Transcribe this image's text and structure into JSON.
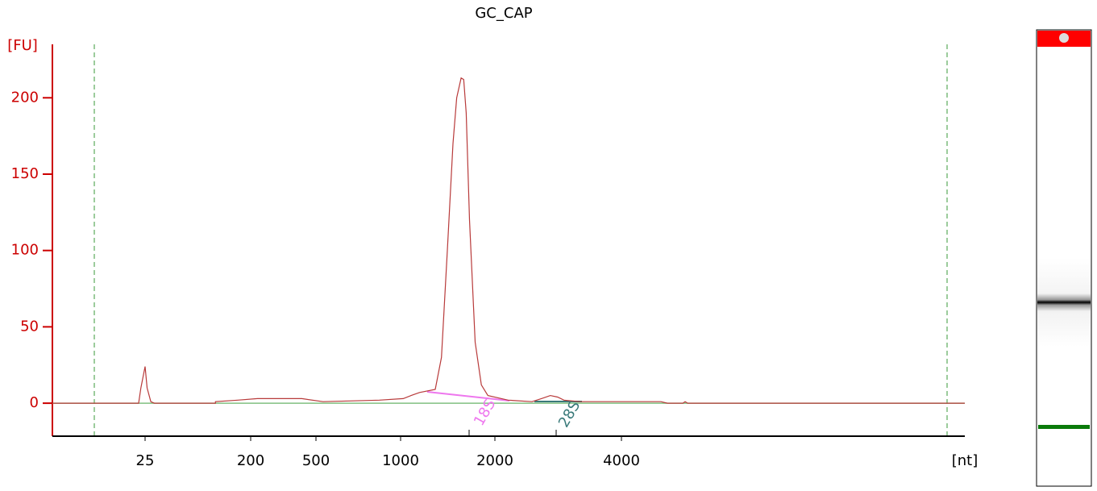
{
  "chart_data": {
    "type": "line",
    "title": "GC_CAP",
    "y_label": "[FU]",
    "x_label": "[nt]",
    "xlim": [
      4,
      26000
    ],
    "xticks": [
      25,
      200,
      500,
      1000,
      2000,
      4000
    ],
    "ylim": [
      -21.6,
      235
    ],
    "yticks": [
      0,
      50,
      100,
      150,
      200
    ],
    "color": "#b83a3a",
    "axis_color": "#cc0000",
    "x": [
      4,
      22,
      23,
      25,
      26,
      28,
      30,
      100,
      100,
      155,
      220,
      410,
      530,
      840,
      1020,
      1080,
      1150,
      1290,
      1350,
      1410,
      1470,
      1510,
      1560,
      1590,
      1620,
      1660,
      1730,
      1810,
      1900,
      2150,
      2450,
      2580,
      2710,
      2820,
      2920,
      3190,
      4960,
      5140,
      5590,
      5660,
      5740,
      26000
    ],
    "values": [
      0,
      0,
      10,
      24,
      10,
      1,
      0,
      0,
      1,
      2,
      3,
      3,
      1,
      2,
      3,
      5,
      7,
      9,
      30,
      100,
      170,
      200,
      213,
      212,
      190,
      120,
      40,
      12,
      5,
      2,
      1,
      3,
      5,
      4,
      2,
      1,
      1,
      0,
      0,
      1,
      0,
      0
    ],
    "annotations": [
      {
        "text": "18S",
        "color": "#ee77ee"
      },
      {
        "text": "28S",
        "color": "#3a7a7a"
      }
    ]
  }
}
